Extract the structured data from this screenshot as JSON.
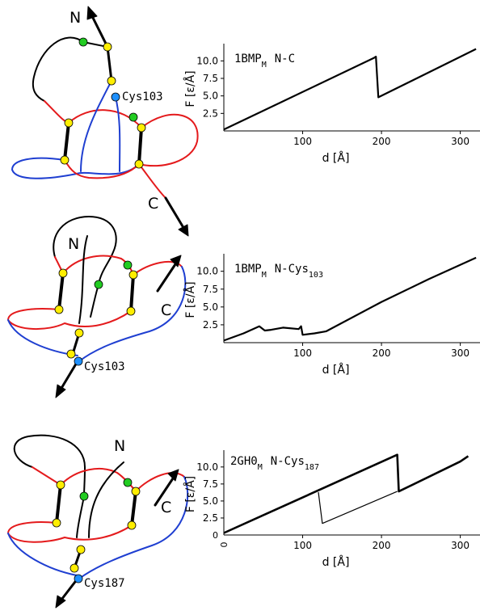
{
  "panels": [
    {
      "diagram_labels": {
        "n": "N",
        "c": "C",
        "site": "Cys103"
      },
      "chart": {
        "protein": "1BMP",
        "subscript": "M",
        "pulling": "N-C",
        "pull_sub": ""
      }
    },
    {
      "diagram_labels": {
        "n": "N",
        "c": "C",
        "site": "Cys103"
      },
      "chart": {
        "protein": "1BMP",
        "subscript": "M",
        "pulling": "N-Cys",
        "pull_sub": "103"
      }
    },
    {
      "diagram_labels": {
        "n": "N",
        "c": "C",
        "site": "Cys187"
      },
      "chart": {
        "protein": "2GH0",
        "subscript": "M",
        "pulling": "N-Cys",
        "pull_sub": "187"
      }
    }
  ],
  "colors": {
    "red": "#e41a1c",
    "blue": "#1f3fd1",
    "yellow": "#ffee00",
    "green": "#22cc22",
    "cys": "#1e90ff",
    "ink": "#000000"
  },
  "chart_data": [
    {
      "type": "line",
      "xlabel": "d [Å]",
      "ylabel": "F [ε/Å]",
      "xlim": [
        0,
        325
      ],
      "ylim": [
        0,
        12
      ],
      "xticks": [
        "100",
        "200",
        "300"
      ],
      "yticks": [
        "2.5",
        "5.0",
        "7.5",
        "10.0"
      ],
      "show_zero_ticks": false,
      "series": [
        {
          "x": [
            0,
            190,
            193,
            196,
            320
          ],
          "y": [
            0.2,
            10.4,
            10.6,
            4.8,
            11.7
          ],
          "width": 2.2
        }
      ]
    },
    {
      "type": "line",
      "xlabel": "d [Å]",
      "ylabel": "F [ε/Å]",
      "xlim": [
        0,
        325
      ],
      "ylim": [
        0,
        12
      ],
      "xticks": [
        "100",
        "200",
        "300"
      ],
      "yticks": [
        "2.5",
        "5.0",
        "7.5",
        "10.0"
      ],
      "show_zero_ticks": false,
      "series": [
        {
          "x": [
            0,
            25,
            45,
            52,
            60,
            75,
            95,
            98,
            100,
            115,
            130,
            200,
            260,
            320
          ],
          "y": [
            0.3,
            1.3,
            2.3,
            1.7,
            1.8,
            2.1,
            1.9,
            2.3,
            1.1,
            1.3,
            1.6,
            5.7,
            8.9,
            11.9
          ],
          "width": 2.2
        }
      ]
    },
    {
      "type": "line",
      "xlabel": "d [Å]",
      "ylabel": "F [ε/Å]",
      "xlim": [
        0,
        325
      ],
      "ylim": [
        0,
        12
      ],
      "xticks": [
        "100",
        "200",
        "300"
      ],
      "yticks": [
        "2.5",
        "5.0",
        "7.5",
        "10.0"
      ],
      "show_zero_ticks": true,
      "zero_tick_labels": {
        "x": "0",
        "y": "0"
      },
      "series": [
        {
          "x": [
            0,
            220,
            222,
            300,
            310
          ],
          "y": [
            0.3,
            11.8,
            6.4,
            10.8,
            11.6
          ],
          "width": 2.6
        },
        {
          "x": [
            120,
            125,
            220
          ],
          "y": [
            6.3,
            1.7,
            6.4
          ],
          "width": 1.2
        }
      ]
    }
  ]
}
